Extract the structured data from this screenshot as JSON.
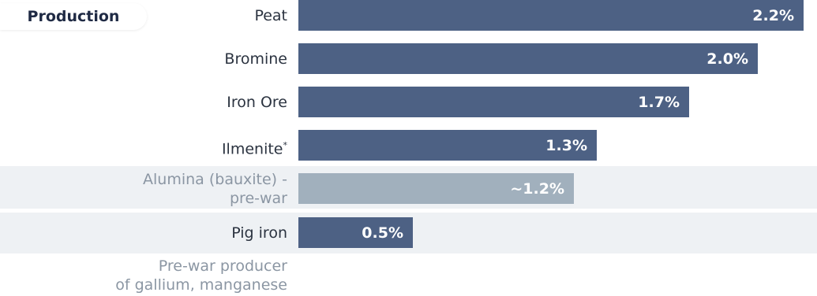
{
  "header": {
    "pill_label": "Production"
  },
  "colors": {
    "bar": "#4d6184",
    "bar_muted": "#a1b0bd",
    "band": "#eef1f4"
  },
  "chart_data": {
    "type": "bar",
    "orientation": "horizontal",
    "categories": [
      "Peat",
      "Bromine",
      "Iron Ore",
      "Ilmenite",
      "Alumina (bauxite) - pre-war",
      "Pig iron"
    ],
    "values": [
      2.2,
      2.0,
      1.7,
      1.3,
      1.2,
      0.5
    ],
    "value_labels": [
      "2.2%",
      "2.0%",
      "1.7%",
      "1.3%",
      "~1.2%",
      "0.5%"
    ],
    "unit": "%"
  },
  "rows": [
    {
      "label": "Peat",
      "value_label": "2.2%"
    },
    {
      "label": "Bromine",
      "value_label": "2.0%"
    },
    {
      "label": "Iron Ore",
      "value_label": "1.7%"
    },
    {
      "label": "Ilmenite",
      "label_mark": "*",
      "value_label": "1.3%"
    },
    {
      "label_line1": "Alumina (bauxite) -",
      "label_line2": "pre-war",
      "value_label": "~1.2%"
    },
    {
      "label": "Pig iron",
      "value_label": "0.5%"
    }
  ],
  "footer": {
    "line1": "Pre-war producer",
    "line2": "of gallium, manganese"
  }
}
